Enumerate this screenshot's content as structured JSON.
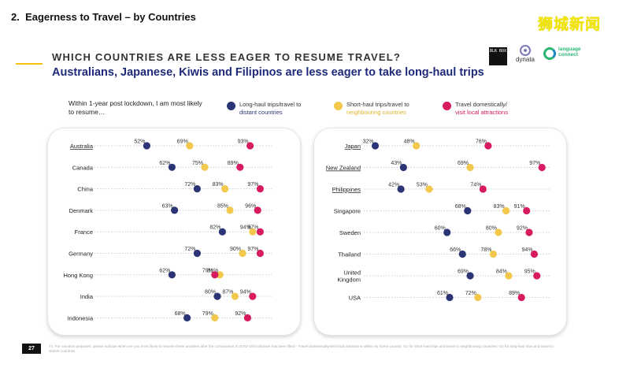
{
  "slide": {
    "section": "2.  Eagerness to Travel – by Countries",
    "watermark": "狮城新闻",
    "heading": "WHICH COUNTRIES ARE LESS EAGER TO RESUME TRAVEL?",
    "headline": "Australians, Japanese, Kiwis and Filipinos are less eager to take long-haul trips",
    "intro": "Within 1-year post lockdown, I am most likely to resume…",
    "page_number": "27",
    "footnote": "T1. For vacation purposes: please indicate when are you most likely to resume these activities after the Coronavirus (COVID-19) lockdown has been lifted - Travel domestically/visit local attractions within my home country; Go for short-haul trips and travel to neighbouring countries; Go for long-haul trips and travel to distant countries"
  },
  "logos": {
    "box": "BLK BOX",
    "dynata": "dynata",
    "lc": "language connect"
  },
  "colors": {
    "long_haul": "#2b3576",
    "short_haul": "#f2c94c",
    "domestic": "#d81b60",
    "line": "#cfcfcf"
  },
  "chart_data": {
    "type": "scatter",
    "series": [
      {
        "name": "Long-haul trips/travel to",
        "subtitle": "distant countries"
      },
      {
        "name": "Short-haul trips/travel to",
        "subtitle": "neighbouring countries"
      },
      {
        "name": "Travel domestically/",
        "subtitle": "visit local attractions"
      }
    ],
    "panels": [
      {
        "rows": [
          {
            "country": "Australia",
            "long": 52,
            "short": 69,
            "dom": 93
          },
          {
            "country": "Canada",
            "long": 62,
            "short": 75,
            "dom": 89
          },
          {
            "country": "China",
            "long": 72,
            "short": 83,
            "dom": 97
          },
          {
            "country": "Denmark",
            "long": 63,
            "short": 85,
            "dom": 96
          },
          {
            "country": "France",
            "long": 82,
            "short": 94,
            "dom": 97
          },
          {
            "country": "Germany",
            "long": 72,
            "short": 90,
            "dom": 97
          },
          {
            "country": "Hong Kong",
            "long": 62,
            "short": 81,
            "dom": 79
          },
          {
            "country": "India",
            "long": 80,
            "short": 87,
            "dom": 94
          },
          {
            "country": "Indonesia",
            "long": 68,
            "short": 79,
            "dom": 92
          }
        ]
      },
      {
        "rows": [
          {
            "country": "Japan",
            "long": 32,
            "short": 48,
            "dom": 76
          },
          {
            "country": "New Zealand",
            "long": 43,
            "short": 69,
            "dom": 97
          },
          {
            "country": "Philippines",
            "long": 42,
            "short": 53,
            "dom": 74
          },
          {
            "country": "Singapore",
            "long": 68,
            "short": 83,
            "dom": 91
          },
          {
            "country": "Sweden",
            "long": 60,
            "short": 80,
            "dom": 92
          },
          {
            "country": "Thailand",
            "long": 66,
            "short": 78,
            "dom": 94
          },
          {
            "country": "United Kingdom",
            "long": 69,
            "short": 84,
            "dom": 95
          },
          {
            "country": "USA",
            "long": 61,
            "short": 72,
            "dom": 89
          }
        ]
      }
    ],
    "underlined_countries": [
      "Australia",
      "Japan",
      "New Zealand",
      "Philippines"
    ],
    "value_suffix": "%",
    "xlim": [
      30,
      100
    ]
  }
}
